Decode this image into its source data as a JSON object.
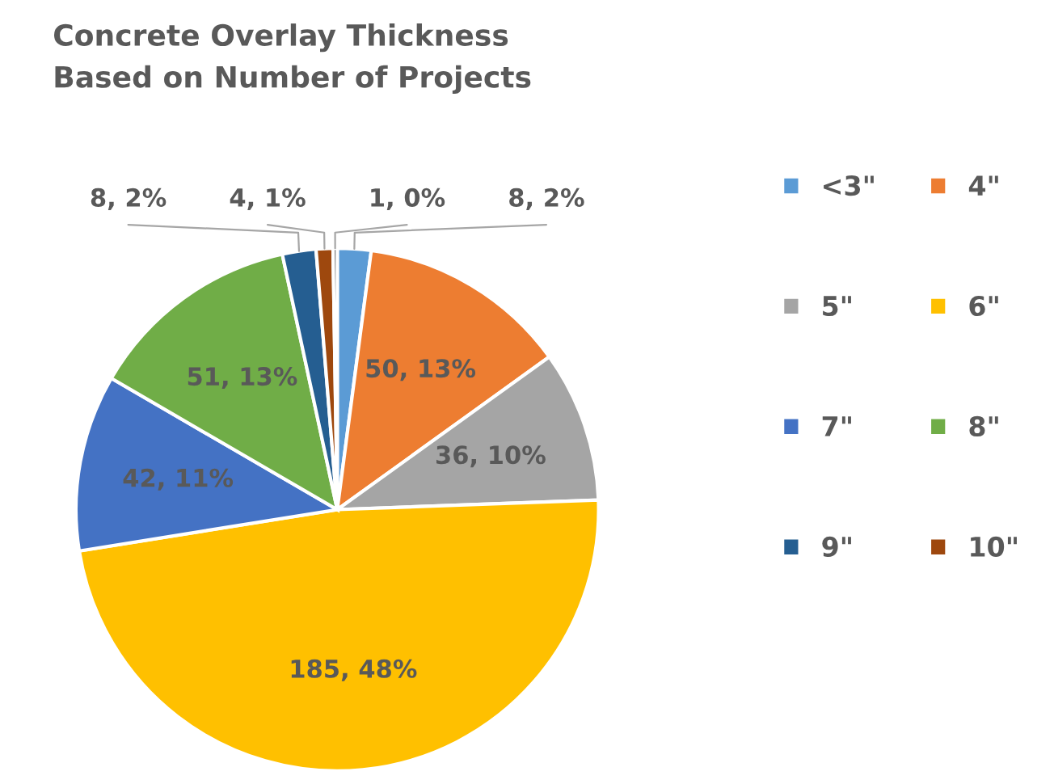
{
  "chart_data": {
    "type": "pie",
    "title": "Concrete Overlay Thickness\nBased on Number of Projects",
    "categories": [
      "<3\"",
      "4\"",
      "5\"",
      "6\"",
      "7\"",
      "8\"",
      "9\"",
      "10\"",
      null
    ],
    "values": [
      8,
      50,
      36,
      185,
      42,
      51,
      8,
      4,
      1
    ],
    "value_labels": [
      "8, 2%",
      "50, 13%",
      "36, 10%",
      "185, 48%",
      "42, 11%",
      "51, 13%",
      "8, 2%",
      "4, 1%",
      "1, 0%"
    ],
    "colors": [
      "#5b9bd5",
      "#ed7d31",
      "#a5a5a5",
      "#ffc000",
      "#4472c4",
      "#70ad47",
      "#255e91",
      "#9e480e",
      "#636363"
    ],
    "legend": "right"
  }
}
